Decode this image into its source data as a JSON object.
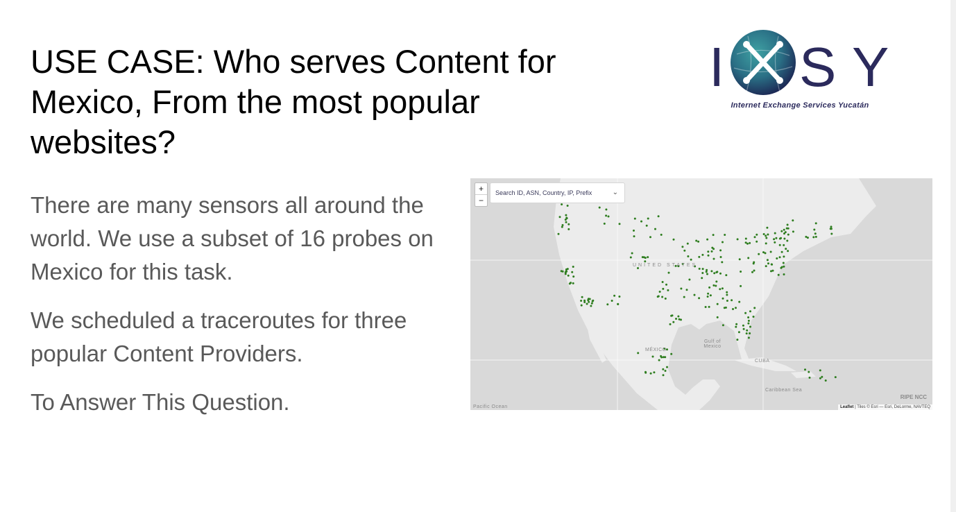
{
  "slide": {
    "title": "USE CASE: Who serves Content for Mexico, From the most popular websites?",
    "paragraphs": [
      "There are many sensors all around the world. We use a subset of 16 probes on Mexico for this task.",
      "We scheduled a traceroutes for three popular Content Providers.",
      "To Answer This Question."
    ]
  },
  "logo": {
    "letters": [
      "I",
      "S",
      "Y"
    ],
    "subtitle": "Internet Exchange Services Yucatán",
    "colors": {
      "text": "#2b2a5c",
      "globe_dark": "#1b2250",
      "globe_teal": "#2a7f86"
    }
  },
  "map": {
    "zoom_in_label": "+",
    "zoom_out_label": "−",
    "search_placeholder": "Search ID, ASN, Country, IP, Prefix",
    "labels": {
      "united_states": "UNITED STATES",
      "mexico": "MÉXICO",
      "gulf": "Gulf of Mexico",
      "cuba": "CUBA",
      "caribbean": "Caribbean Sea",
      "pacific": "Pacific Ocean"
    },
    "ripe_label": "RIPE NCC",
    "attribution_leaflet": "Leaflet",
    "attribution_rest": " | Tiles © Esri — Esri, DeLorme, NAVTEQ",
    "colors": {
      "water": "#d9d9d9",
      "land": "#ececec",
      "probe": "#2e7d1f"
    }
  }
}
